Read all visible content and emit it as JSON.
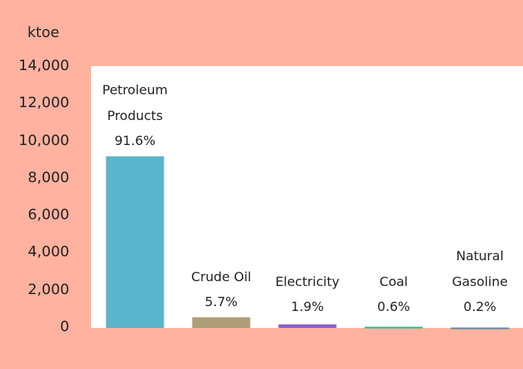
{
  "chart_data": {
    "type": "bar",
    "y_label": "ktoe",
    "categories": [
      "Petroleum Products",
      "Crude Oil",
      "Electricity",
      "Coal",
      "Natural Gasoline"
    ],
    "values": [
      9200,
      572,
      191,
      60,
      20
    ],
    "value_labels": [
      "91.6%",
      "5.7%",
      "1.9%",
      "0.6%",
      "0.2%"
    ],
    "colors": [
      "#5ab4cc",
      "#ad9e78",
      "#8a5fd0",
      "#26b98f",
      "#5a8a9b"
    ],
    "ylim": [
      0,
      14000
    ],
    "yticks": [
      0,
      {
        "value": 2000,
        "label": "2,000"
      },
      {
        "value": 4000,
        "label": "4,000"
      },
      {
        "value": 6000,
        "label": "6,000"
      },
      {
        "value": 8000,
        "label": "8,000"
      },
      {
        "value": 10000,
        "label": "10,000"
      },
      {
        "value": 12000,
        "label": "12,000"
      },
      {
        "value": 14000,
        "label": "14,000"
      }
    ],
    "grid": false
  }
}
